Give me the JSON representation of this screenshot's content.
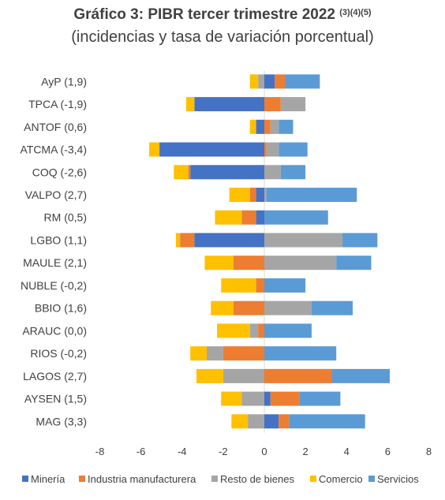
{
  "chart_data": {
    "type": "bar",
    "orientation": "horizontal",
    "stacked": true,
    "title": "Gráfico 3: PIBR tercer trimestre 2022",
    "title_superscript": "(3)(4)(5)",
    "subtitle": "(incidencias y tasa de variación porcentual)",
    "categories": [
      "AyP (1,9)",
      "TPCA (-1,9)",
      "ANTOF (0,6)",
      "ATCMA (-3,4)",
      "COQ (-2,6)",
      "VALPO (2,7)",
      "RM (0,5)",
      "LGBO (1,1)",
      "MAULE (2,1)",
      "NUBLE (-0,2)",
      "BBIO (1,6)",
      "ARAUC (0,0)",
      "RIOS (-0,2)",
      "LAGOS (2,7)",
      "AYSEN (1,5)",
      "MAG (3,3)"
    ],
    "series": [
      {
        "name": "Minería",
        "color": "#4472C4",
        "values": [
          0.5,
          -3.4,
          -0.4,
          -5.1,
          -3.6,
          -0.4,
          -0.4,
          -3.4,
          0,
          0,
          0,
          0,
          0,
          0,
          0.3,
          0.7
        ]
      },
      {
        "name": "Industria manufacturera",
        "color": "#ED7D31",
        "values": [
          0.5,
          0.8,
          0.3,
          0.1,
          -0.1,
          -0.3,
          -0.7,
          -0.7,
          -1.5,
          -0.4,
          -1.5,
          -0.3,
          -2.0,
          3.3,
          1.4,
          0.5
        ]
      },
      {
        "name": "Resto de bienes",
        "color": "#A5A5A5",
        "values": [
          -0.3,
          1.2,
          0.4,
          0.6,
          0.8,
          0.1,
          0,
          3.8,
          3.5,
          0,
          2.3,
          -0.4,
          -0.8,
          -2.0,
          -1.1,
          -0.8
        ]
      },
      {
        "name": "Comercio",
        "color": "#FFC000",
        "values": [
          -0.4,
          -0.4,
          -0.3,
          -0.5,
          -0.7,
          -1.0,
          -1.3,
          -0.2,
          -1.4,
          -1.7,
          -1.1,
          -1.6,
          -0.8,
          -1.3,
          -1.0,
          -0.8
        ]
      },
      {
        "name": "Servicios",
        "color": "#5B9BD5",
        "values": [
          1.7,
          0,
          0.7,
          1.4,
          1.2,
          4.4,
          3.1,
          1.7,
          1.7,
          2.0,
          2.0,
          2.3,
          3.5,
          2.8,
          2.0,
          3.7
        ]
      }
    ],
    "xlim": [
      -8,
      8
    ],
    "xticks": [
      "-8",
      "-6",
      "-4",
      "-2",
      "0",
      "2",
      "4",
      "6",
      "8"
    ],
    "grid": false,
    "legend_position": "bottom"
  }
}
